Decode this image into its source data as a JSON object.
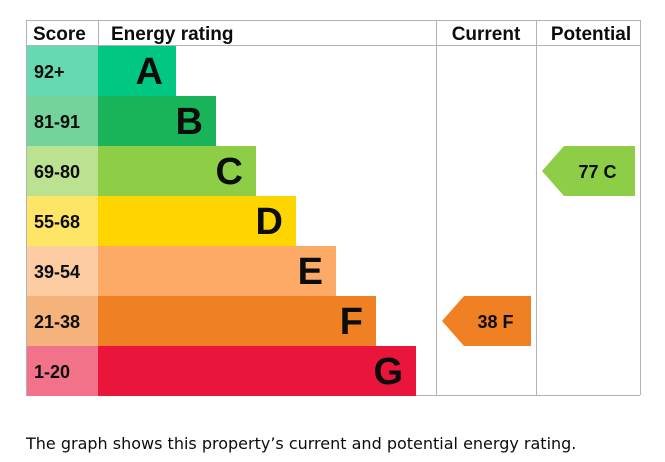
{
  "chart_data": {
    "type": "bar",
    "headers": {
      "score": "Score",
      "rating": "Energy rating",
      "current": "Current",
      "potential": "Potential"
    },
    "bands": [
      {
        "band": "A",
        "score": "92+",
        "color": "#00c781",
        "score_bg": "#66d9b3"
      },
      {
        "band": "B",
        "score": "81-91",
        "color": "#19b459",
        "score_bg": "#75d29b"
      },
      {
        "band": "C",
        "score": "69-80",
        "color": "#8dce46",
        "score_bg": "#bbe290"
      },
      {
        "band": "D",
        "score": "55-68",
        "color": "#ffd500",
        "score_bg": "#ffe566"
      },
      {
        "band": "E",
        "score": "39-54",
        "color": "#fcaa65",
        "score_bg": "#fdcca3"
      },
      {
        "band": "F",
        "score": "21-38",
        "color": "#ef8023",
        "score_bg": "#f5b37b"
      },
      {
        "band": "G",
        "score": "1-20",
        "color": "#e9153b",
        "score_bg": "#f27389"
      }
    ],
    "current": {
      "value": 38,
      "band": "F",
      "label": "38 F"
    },
    "potential": {
      "value": 77,
      "band": "C",
      "label": "77 C"
    }
  },
  "caption": "The graph shows this property’s current and potential energy rating."
}
